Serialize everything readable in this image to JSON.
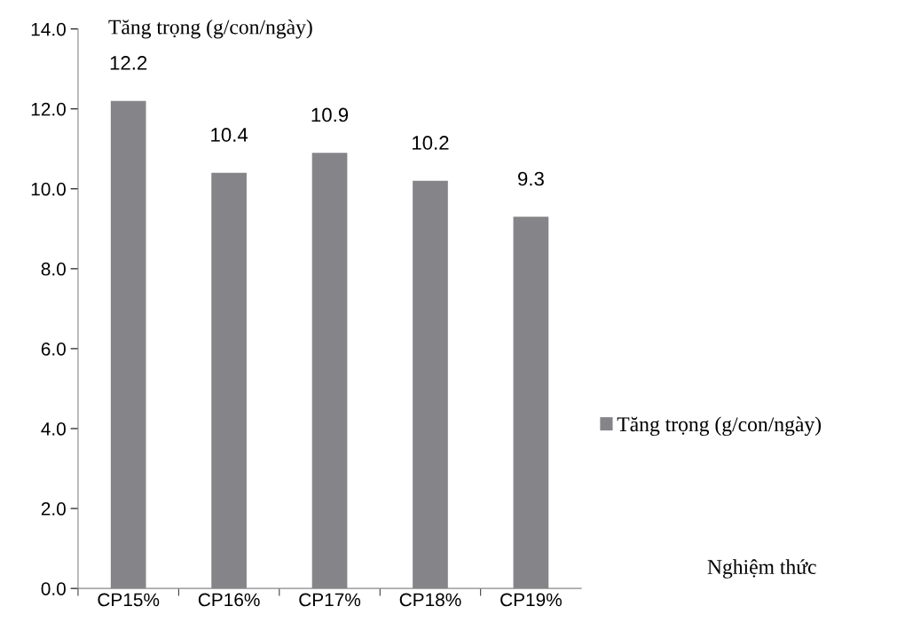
{
  "chart_data": {
    "type": "bar",
    "ylabel": "Tăng trọng (g/con/ngày)",
    "annotations": [
      "Nghiệm thức"
    ],
    "categories": [
      "CP15%",
      "CP16%",
      "CP17%",
      "CP18%",
      "CP19%"
    ],
    "series": [
      {
        "name": "Tăng trọng (g/con/ngày)",
        "color": "#858589",
        "values": [
          12.2,
          10.4,
          10.9,
          10.2,
          9.3
        ]
      }
    ],
    "ylim": [
      0,
      14
    ],
    "yticks": [
      {
        "value": 0,
        "label": "0.0"
      },
      {
        "value": 2,
        "label": "2.0"
      },
      {
        "value": 4,
        "label": "4.0"
      },
      {
        "value": 6,
        "label": "6.0"
      },
      {
        "value": 8,
        "label": "8.0"
      },
      {
        "value": 10,
        "label": "10.0"
      },
      {
        "value": 12,
        "label": "12.0"
      },
      {
        "value": 14,
        "label": "14.0"
      }
    ],
    "data_labels": true,
    "legend": "right",
    "grid": false
  }
}
